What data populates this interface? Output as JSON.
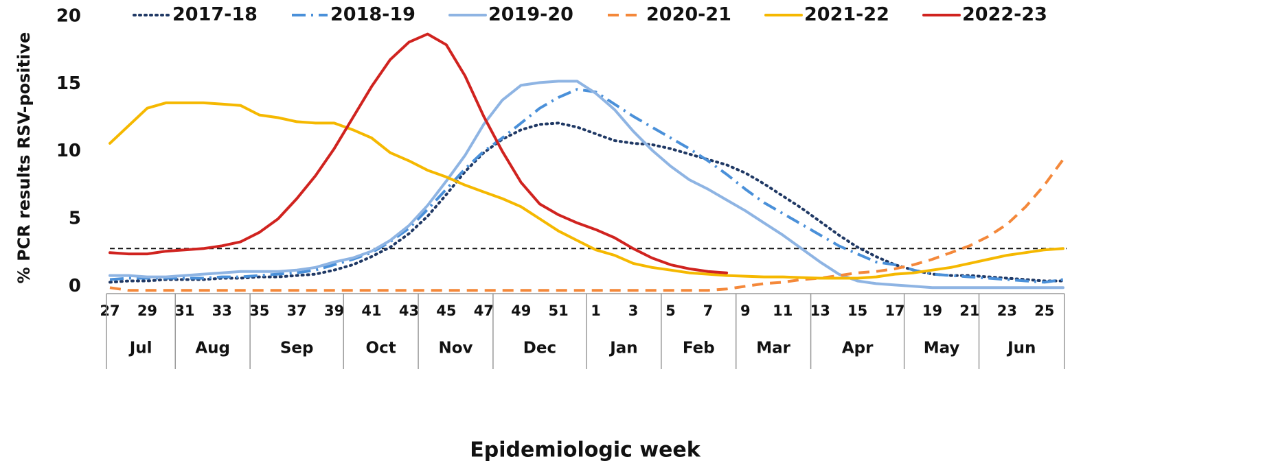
{
  "chart_data": {
    "type": "line",
    "y_label": "% PCR results RSV-positive",
    "x_label": "Epidemiologic week",
    "categories": [
      "27",
      null,
      "29",
      null,
      "31",
      null,
      "33",
      null,
      "35",
      null,
      "37",
      null,
      "39",
      null,
      "41",
      null,
      "43",
      null,
      "45",
      null,
      "47",
      null,
      "49",
      null,
      "51",
      null,
      "1",
      null,
      "3",
      null,
      "5",
      null,
      "7",
      null,
      "9",
      null,
      "11",
      null,
      "13",
      null,
      "15",
      null,
      "17",
      null,
      "19",
      null,
      "21",
      null,
      "23",
      null,
      "25",
      null
    ],
    "months": [
      {
        "name": "Jul",
        "weeks": 4
      },
      {
        "name": "Aug",
        "weeks": 4
      },
      {
        "name": "Sep",
        "weeks": 5
      },
      {
        "name": "Oct",
        "weeks": 4
      },
      {
        "name": "Nov",
        "weeks": 4
      },
      {
        "name": "Dec",
        "weeks": 5
      },
      {
        "name": "Jan",
        "weeks": 4
      },
      {
        "name": "Feb",
        "weeks": 4
      },
      {
        "name": "Mar",
        "weeks": 4
      },
      {
        "name": "Apr",
        "weeks": 5
      },
      {
        "name": "May",
        "weeks": 4
      },
      {
        "name": "Jun",
        "weeks": 5
      }
    ],
    "ylim": [
      -1,
      20
    ],
    "yticks": [
      0,
      5,
      10,
      15,
      20
    ],
    "threshold": 2.8,
    "legend": "top",
    "series": [
      {
        "name": "2017-18",
        "color": "#1f3864",
        "style": "dotted",
        "values": [
          0.3,
          0.4,
          0.4,
          0.5,
          0.5,
          0.5,
          0.6,
          0.6,
          0.7,
          0.7,
          0.8,
          0.9,
          1.2,
          1.6,
          2.2,
          2.9,
          3.9,
          5.2,
          6.8,
          8.5,
          9.9,
          10.9,
          11.6,
          12.0,
          12.1,
          11.8,
          11.3,
          10.8,
          10.6,
          10.5,
          10.2,
          9.8,
          9.4,
          9.0,
          8.4,
          7.6,
          6.7,
          5.8,
          4.8,
          3.8,
          2.9,
          2.2,
          1.6,
          1.2,
          0.9,
          0.8,
          0.8,
          0.7,
          0.6,
          0.5,
          0.4,
          0.4
        ]
      },
      {
        "name": "2018-19",
        "color": "#4a90d9",
        "style": "dashdot",
        "values": [
          0.5,
          0.6,
          0.6,
          0.6,
          0.6,
          0.6,
          0.7,
          0.7,
          0.8,
          0.9,
          1.0,
          1.2,
          1.6,
          2.0,
          2.5,
          3.3,
          4.3,
          5.7,
          7.2,
          8.7,
          10.0,
          11.0,
          12.1,
          13.2,
          14.0,
          14.6,
          14.4,
          13.5,
          12.6,
          11.8,
          11.0,
          10.2,
          9.3,
          8.3,
          7.2,
          6.2,
          5.4,
          4.6,
          3.8,
          3.0,
          2.4,
          1.8,
          1.6,
          1.2,
          0.9,
          0.8,
          0.7,
          0.6,
          0.5,
          0.4,
          0.3,
          0.5
        ]
      },
      {
        "name": "2019-20",
        "color": "#8eb4e3",
        "style": "solid",
        "values": [
          0.8,
          0.8,
          0.7,
          0.7,
          0.8,
          0.9,
          1.0,
          1.1,
          1.1,
          1.1,
          1.2,
          1.4,
          1.8,
          2.1,
          2.6,
          3.4,
          4.5,
          6.0,
          7.8,
          9.7,
          12.0,
          13.8,
          14.9,
          15.1,
          15.2,
          15.2,
          14.3,
          13.1,
          11.5,
          10.1,
          8.9,
          7.9,
          7.2,
          6.4,
          5.6,
          4.7,
          3.8,
          2.8,
          1.8,
          0.9,
          0.4,
          0.2,
          0.1,
          0.0,
          -0.1,
          -0.1,
          -0.1,
          -0.1,
          -0.1,
          -0.1,
          -0.1,
          -0.1
        ]
      },
      {
        "name": "2020-21",
        "color": "#f4883a",
        "style": "dashed",
        "values": [
          -0.1,
          -0.3,
          -0.3,
          -0.3,
          -0.3,
          -0.3,
          -0.3,
          -0.3,
          -0.3,
          -0.3,
          -0.3,
          -0.3,
          -0.3,
          -0.3,
          -0.3,
          -0.3,
          -0.3,
          -0.3,
          -0.3,
          -0.3,
          -0.3,
          -0.3,
          -0.3,
          -0.3,
          -0.3,
          -0.3,
          -0.3,
          -0.3,
          -0.3,
          -0.3,
          -0.3,
          -0.3,
          -0.3,
          -0.2,
          0.0,
          0.2,
          0.3,
          0.5,
          0.6,
          0.8,
          1.0,
          1.1,
          1.3,
          1.6,
          2.0,
          2.5,
          3.0,
          3.7,
          4.6,
          5.9,
          7.5,
          9.4
        ]
      },
      {
        "name": "2021-22",
        "color": "#f5b800",
        "style": "solid",
        "values": [
          10.6,
          11.9,
          13.2,
          13.6,
          13.6,
          13.6,
          13.5,
          13.4,
          12.7,
          12.5,
          12.2,
          12.1,
          12.1,
          11.6,
          11.0,
          9.9,
          9.3,
          8.6,
          8.1,
          7.5,
          7.0,
          6.5,
          5.9,
          5.0,
          4.1,
          3.4,
          2.7,
          2.3,
          1.7,
          1.4,
          1.2,
          1.0,
          0.9,
          0.8,
          0.75,
          0.7,
          0.7,
          0.65,
          0.6,
          0.6,
          0.6,
          0.7,
          0.9,
          1.0,
          1.2,
          1.4,
          1.7,
          2.0,
          2.3,
          2.5,
          2.7,
          2.8
        ]
      },
      {
        "name": "2022-23",
        "color": "#d0231f",
        "style": "solid",
        "values": [
          2.5,
          2.4,
          2.4,
          2.6,
          2.7,
          2.8,
          3.0,
          3.3,
          4.0,
          5.0,
          6.5,
          8.2,
          10.2,
          12.5,
          14.8,
          16.8,
          18.1,
          18.7,
          17.9,
          15.6,
          12.6,
          10.0,
          7.7,
          6.1,
          5.3,
          4.7,
          4.2,
          3.6,
          2.8,
          2.1,
          1.6,
          1.3,
          1.1,
          1.0,
          null,
          null,
          null,
          null,
          null,
          null,
          null,
          null,
          null,
          null,
          null,
          null,
          null,
          null,
          null,
          null,
          null,
          null
        ]
      }
    ]
  }
}
